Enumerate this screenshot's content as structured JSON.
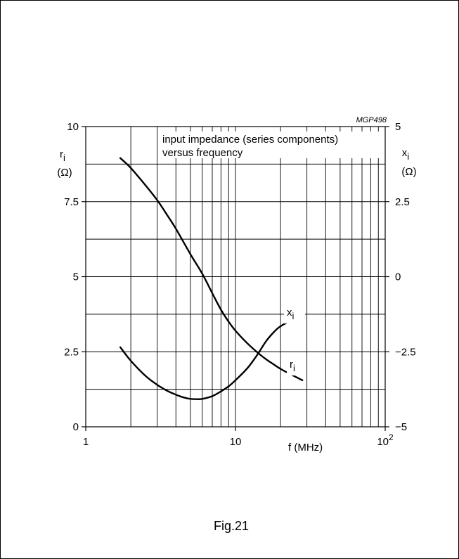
{
  "figure": {
    "code": "MGP498",
    "caption": "Fig.21"
  },
  "chart_data": {
    "type": "line",
    "title_lines": [
      "input impedance (series components)",
      "versus frequency"
    ],
    "xlabel": "f (MHz)",
    "x_scale": "log",
    "xlim": [
      1,
      100
    ],
    "x_ticks": [
      {
        "value": 1,
        "base": "1",
        "exp": ""
      },
      {
        "value": 10,
        "base": "10",
        "exp": ""
      },
      {
        "value": 100,
        "base": "10",
        "exp": "2"
      }
    ],
    "left_axis": {
      "symbol": "r",
      "subscript": "i",
      "unit": "(Ω)",
      "ylim": [
        0,
        10
      ],
      "ticks": [
        {
          "value": 0,
          "label": "0"
        },
        {
          "value": 2.5,
          "label": "2.5"
        },
        {
          "value": 5,
          "label": "5"
        },
        {
          "value": 7.5,
          "label": "7.5"
        },
        {
          "value": 10,
          "label": "10"
        }
      ]
    },
    "right_axis": {
      "symbol": "x",
      "subscript": "i",
      "unit": "(Ω)",
      "ylim": [
        -5,
        5
      ],
      "ticks": [
        {
          "value": -5,
          "label": "−5"
        },
        {
          "value": -2.5,
          "label": "−2.5"
        },
        {
          "value": 0,
          "label": "0"
        },
        {
          "value": 2.5,
          "label": "2.5"
        },
        {
          "value": 5,
          "label": "5"
        }
      ]
    },
    "grid": true,
    "series": [
      {
        "name": "r",
        "subscript": "i",
        "axis": "left",
        "x": [
          1.7,
          2.0,
          2.5,
          3.0,
          3.5,
          4.0,
          5.0,
          6.0,
          7.0,
          8.0,
          9.0,
          10.0,
          12.0,
          14.0,
          16.0,
          18.0,
          20.0,
          24.0,
          28.0
        ],
        "y": [
          8.95,
          8.62,
          8.05,
          7.55,
          7.05,
          6.6,
          5.75,
          5.1,
          4.45,
          3.9,
          3.5,
          3.2,
          2.78,
          2.48,
          2.25,
          2.08,
          1.93,
          1.72,
          1.55
        ]
      },
      {
        "name": "x",
        "subscript": "i",
        "axis": "right",
        "x": [
          1.7,
          2.0,
          2.5,
          3.0,
          3.5,
          4.0,
          4.5,
          5.0,
          5.5,
          6.0,
          7.0,
          8.0,
          9.0,
          10.0,
          12.0,
          14.0,
          16.0,
          18.0,
          20.0,
          24.0,
          28.0
        ],
        "y": [
          -2.35,
          -2.8,
          -3.3,
          -3.6,
          -3.8,
          -3.93,
          -4.02,
          -4.07,
          -4.08,
          -4.07,
          -3.98,
          -3.82,
          -3.65,
          -3.45,
          -3.05,
          -2.6,
          -2.15,
          -1.85,
          -1.65,
          -1.45,
          -1.35
        ]
      }
    ]
  }
}
